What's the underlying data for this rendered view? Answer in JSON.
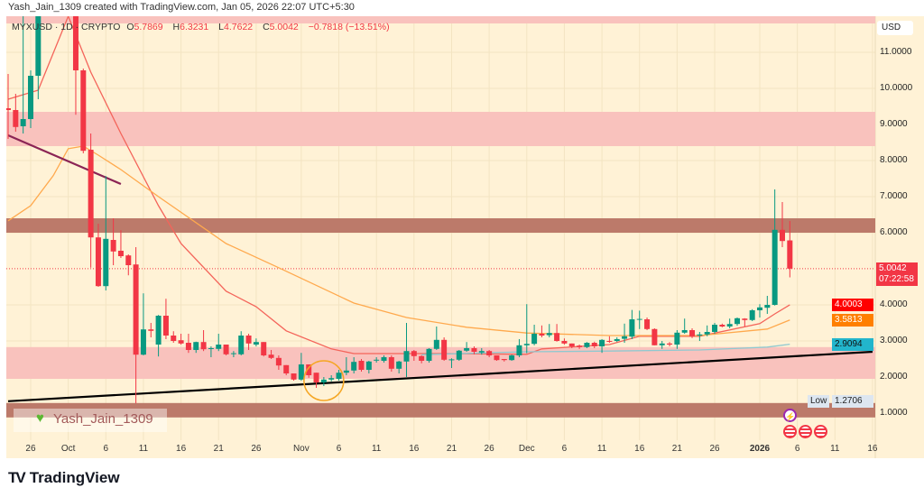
{
  "credit": "Yash_Jain_1309 created with TradingView.com, Jan 05, 2026 22:07 UTC+5:30",
  "legend": {
    "symbol": "MYXUSD · 1D · CRYPTO",
    "o_label": "O",
    "o": "5.7869",
    "h_label": "H",
    "h": "6.3231",
    "l_label": "L",
    "l": "4.7622",
    "c_label": "C",
    "c": "5.0042",
    "change": "−0.7818 (−13.51%)"
  },
  "currency": "USD",
  "watermark": "Yash_Jain_1309",
  "footer_brand": "TradingView",
  "footer_logo": "TV",
  "price_labels": {
    "last": {
      "value": "5.0042",
      "countdown": "07:22:58",
      "color": "#f23645"
    },
    "ma_red": {
      "value": "4.0003",
      "color": "#ff0000"
    },
    "ma_orange": {
      "value": "3.5813",
      "color": "#ff7f00"
    },
    "ma_teal": {
      "value": "2.9094",
      "color": "#22b5cc"
    },
    "low": {
      "tag": "Low",
      "value": "1.2706"
    }
  },
  "colors": {
    "up": "#089981",
    "down": "#f23645",
    "background": "#fff2d6"
  },
  "chart_data": {
    "type": "candlestick",
    "title": "MYXUSD · 1D · CRYPTO",
    "ylim": [
      0.75,
      12.0
    ],
    "xlim": [
      "2025-09-23",
      "2026-01-16"
    ],
    "grid": true,
    "y_ticks": [
      "11.0000",
      "10.0000",
      "9.0000",
      "8.0000",
      "7.0000",
      "6.0000",
      "4.0000",
      "3.0000",
      "2.0000",
      "1.0000"
    ],
    "x_ticks": [
      {
        "label": "26",
        "date": "2025-09-26"
      },
      {
        "label": "Oct",
        "date": "2025-10-01"
      },
      {
        "label": "6",
        "date": "2025-10-06"
      },
      {
        "label": "11",
        "date": "2025-10-11"
      },
      {
        "label": "16",
        "date": "2025-10-16"
      },
      {
        "label": "21",
        "date": "2025-10-21"
      },
      {
        "label": "26",
        "date": "2025-10-26"
      },
      {
        "label": "Nov",
        "date": "2025-11-01"
      },
      {
        "label": "6",
        "date": "2025-11-06"
      },
      {
        "label": "11",
        "date": "2025-11-11"
      },
      {
        "label": "16",
        "date": "2025-11-16"
      },
      {
        "label": "21",
        "date": "2025-11-21"
      },
      {
        "label": "26",
        "date": "2025-11-26"
      },
      {
        "label": "Dec",
        "date": "2025-12-01"
      },
      {
        "label": "6",
        "date": "2025-12-06"
      },
      {
        "label": "11",
        "date": "2025-12-11"
      },
      {
        "label": "16",
        "date": "2025-12-16"
      },
      {
        "label": "21",
        "date": "2025-12-21"
      },
      {
        "label": "26",
        "date": "2025-12-26"
      },
      {
        "label": "2026",
        "date": "2026-01-01",
        "bold": true
      },
      {
        "label": "6",
        "date": "2026-01-06"
      },
      {
        "label": "11",
        "date": "2026-01-11"
      },
      {
        "label": "16",
        "date": "2026-01-16"
      }
    ],
    "columns": [
      "date",
      "open",
      "high",
      "low",
      "close"
    ],
    "candles": [
      [
        "2025-09-23",
        9.45,
        10.4,
        8.6,
        9.4
      ],
      [
        "2025-09-24",
        9.4,
        9.85,
        8.8,
        8.93
      ],
      [
        "2025-09-25",
        8.95,
        12.0,
        8.75,
        9.15
      ],
      [
        "2025-09-26",
        9.15,
        10.5,
        8.9,
        10.35
      ],
      [
        "2025-09-27",
        10.35,
        12.5,
        9.7,
        12.2
      ],
      [
        "2025-10-02",
        12.2,
        12.5,
        9.27,
        10.5
      ],
      [
        "2025-10-03",
        10.5,
        10.55,
        8.2,
        8.27
      ],
      [
        "2025-10-04",
        8.3,
        8.75,
        5.03,
        5.87
      ],
      [
        "2025-10-05",
        5.87,
        6.25,
        4.5,
        4.52
      ],
      [
        "2025-10-06",
        4.52,
        7.57,
        4.4,
        5.83
      ],
      [
        "2025-10-07",
        5.8,
        6.4,
        5.1,
        5.48
      ],
      [
        "2025-10-08",
        5.5,
        6.07,
        5.3,
        5.35
      ],
      [
        "2025-10-09",
        5.37,
        5.4,
        4.82,
        5.1
      ],
      [
        "2025-10-10",
        5.12,
        5.6,
        1.2706,
        2.62
      ],
      [
        "2025-10-11",
        2.62,
        4.32,
        2.6,
        3.32
      ],
      [
        "2025-10-12",
        3.32,
        3.5,
        3.1,
        3.28
      ],
      [
        "2025-10-13",
        2.9,
        3.72,
        2.57,
        3.7
      ],
      [
        "2025-10-14",
        3.7,
        4.17,
        3.05,
        3.15
      ],
      [
        "2025-10-15",
        3.15,
        3.27,
        2.95,
        3.0
      ],
      [
        "2025-10-16",
        3.02,
        3.2,
        2.9,
        2.93
      ],
      [
        "2025-10-17",
        2.95,
        3.2,
        2.67,
        2.75
      ],
      [
        "2025-10-18",
        2.75,
        2.98,
        2.67,
        2.97
      ],
      [
        "2025-10-19",
        2.97,
        3.3,
        2.72,
        2.77
      ],
      [
        "2025-10-20",
        2.78,
        2.85,
        2.55,
        2.8
      ],
      [
        "2025-10-21",
        2.78,
        3.2,
        2.72,
        2.9
      ],
      [
        "2025-10-22",
        2.9,
        2.9,
        2.6,
        2.63
      ],
      [
        "2025-10-23",
        2.65,
        2.72,
        2.55,
        2.66
      ],
      [
        "2025-10-24",
        2.63,
        3.27,
        2.6,
        3.15
      ],
      [
        "2025-10-25",
        3.15,
        3.2,
        2.75,
        2.93
      ],
      [
        "2025-10-26",
        2.9,
        3.07,
        2.85,
        2.97
      ],
      [
        "2025-10-27",
        2.97,
        2.97,
        2.57,
        2.6
      ],
      [
        "2025-10-28",
        2.62,
        2.75,
        2.5,
        2.53
      ],
      [
        "2025-10-29",
        2.53,
        2.6,
        2.2,
        2.32
      ],
      [
        "2025-10-30",
        2.33,
        2.33,
        2.05,
        2.1
      ],
      [
        "2025-10-31",
        2.1,
        2.1,
        1.9,
        1.93
      ],
      [
        "2025-11-01",
        1.93,
        2.67,
        1.9,
        2.35
      ],
      [
        "2025-11-02",
        2.35,
        2.35,
        1.98,
        2.05
      ],
      [
        "2025-11-03",
        2.12,
        2.12,
        1.7,
        1.85
      ],
      [
        "2025-11-04",
        1.85,
        2.0,
        1.75,
        1.93
      ],
      [
        "2025-11-05",
        1.93,
        2.05,
        1.88,
        1.97
      ],
      [
        "2025-11-06",
        1.95,
        2.2,
        1.9,
        2.12
      ],
      [
        "2025-11-07",
        2.12,
        2.55,
        2.05,
        2.18
      ],
      [
        "2025-11-08",
        2.18,
        2.55,
        2.1,
        2.42
      ],
      [
        "2025-11-09",
        2.45,
        2.5,
        2.15,
        2.2
      ],
      [
        "2025-11-10",
        2.2,
        2.45,
        2.1,
        2.43
      ],
      [
        "2025-11-11",
        2.46,
        2.55,
        2.4,
        2.48
      ],
      [
        "2025-11-12",
        2.45,
        2.6,
        2.4,
        2.55
      ],
      [
        "2025-11-13",
        2.55,
        2.6,
        2.15,
        2.23
      ],
      [
        "2025-11-14",
        2.23,
        2.45,
        2.1,
        2.43
      ],
      [
        "2025-11-15",
        2.43,
        3.5,
        2.0,
        2.72
      ],
      [
        "2025-11-16",
        2.72,
        2.75,
        2.45,
        2.58
      ],
      [
        "2025-11-17",
        2.58,
        2.6,
        2.38,
        2.45
      ],
      [
        "2025-11-18",
        2.45,
        2.8,
        2.4,
        2.78
      ],
      [
        "2025-11-19",
        2.78,
        3.4,
        2.75,
        3.03
      ],
      [
        "2025-11-20",
        3.03,
        3.1,
        2.45,
        2.48
      ],
      [
        "2025-11-21",
        2.48,
        2.52,
        2.25,
        2.49
      ],
      [
        "2025-11-22",
        2.48,
        2.75,
        2.45,
        2.73
      ],
      [
        "2025-11-23",
        2.73,
        2.97,
        2.7,
        2.8
      ],
      [
        "2025-11-24",
        2.8,
        2.85,
        2.63,
        2.7
      ],
      [
        "2025-11-25",
        2.68,
        2.8,
        2.62,
        2.72
      ],
      [
        "2025-11-26",
        2.72,
        2.75,
        2.55,
        2.6
      ],
      [
        "2025-11-27",
        2.6,
        2.6,
        2.45,
        2.47
      ],
      [
        "2025-11-28",
        2.5,
        2.5,
        2.43,
        2.47
      ],
      [
        "2025-11-29",
        2.47,
        2.62,
        2.45,
        2.6
      ],
      [
        "2025-11-30",
        2.6,
        3.05,
        2.55,
        2.88
      ],
      [
        "2025-12-01",
        2.88,
        4.02,
        2.66,
        2.92
      ],
      [
        "2025-12-02",
        2.92,
        3.45,
        2.88,
        3.2
      ],
      [
        "2025-12-03",
        3.2,
        3.43,
        3.1,
        3.15
      ],
      [
        "2025-12-04",
        3.16,
        3.47,
        3.1,
        3.22
      ],
      [
        "2025-12-05",
        3.22,
        3.47,
        2.98,
        3.0
      ],
      [
        "2025-12-06",
        3.0,
        3.07,
        2.9,
        2.93
      ],
      [
        "2025-12-07",
        2.93,
        2.93,
        2.8,
        2.85
      ],
      [
        "2025-12-08",
        2.87,
        2.9,
        2.78,
        2.83
      ],
      [
        "2025-12-09",
        2.83,
        2.97,
        2.8,
        2.95
      ],
      [
        "2025-12-10",
        2.95,
        2.98,
        2.8,
        2.85
      ],
      [
        "2025-12-11",
        2.85,
        3.05,
        2.67,
        3.03
      ],
      [
        "2025-12-12",
        3.0,
        3.13,
        2.95,
        2.98
      ],
      [
        "2025-12-13",
        3.0,
        3.1,
        2.97,
        3.05
      ],
      [
        "2025-12-14",
        3.06,
        3.48,
        2.95,
        3.13
      ],
      [
        "2025-12-15",
        3.12,
        3.86,
        3.05,
        3.6
      ],
      [
        "2025-12-16",
        3.6,
        3.84,
        3.33,
        3.61
      ],
      [
        "2025-12-17",
        3.6,
        3.65,
        3.3,
        3.33
      ],
      [
        "2025-12-18",
        3.33,
        3.35,
        2.88,
        2.88
      ],
      [
        "2025-12-19",
        2.88,
        3.0,
        2.78,
        2.93
      ],
      [
        "2025-12-20",
        2.93,
        2.97,
        2.85,
        2.9
      ],
      [
        "2025-12-21",
        2.9,
        3.3,
        2.78,
        3.23
      ],
      [
        "2025-12-22",
        3.23,
        3.62,
        3.2,
        3.3
      ],
      [
        "2025-12-23",
        3.3,
        3.35,
        3.08,
        3.13
      ],
      [
        "2025-12-24",
        3.15,
        3.25,
        3.0,
        3.18
      ],
      [
        "2025-12-25",
        3.18,
        3.43,
        3.13,
        3.25
      ],
      [
        "2025-12-26",
        3.25,
        3.5,
        3.2,
        3.45
      ],
      [
        "2025-12-27",
        3.45,
        3.48,
        3.38,
        3.4
      ],
      [
        "2025-12-28",
        3.4,
        3.62,
        3.35,
        3.47
      ],
      [
        "2025-12-29",
        3.47,
        3.65,
        3.42,
        3.63
      ],
      [
        "2025-12-30",
        3.62,
        3.63,
        3.4,
        3.58
      ],
      [
        "2025-12-31",
        3.58,
        3.88,
        3.55,
        3.85
      ],
      [
        "2026-01-01",
        3.85,
        4.02,
        3.65,
        3.93
      ],
      [
        "2026-01-02",
        3.92,
        4.25,
        3.75,
        4.0
      ],
      [
        "2026-01-03",
        4.0,
        7.2,
        3.98,
        6.08
      ],
      [
        "2026-01-04",
        6.08,
        6.85,
        5.6,
        5.77
      ],
      [
        "2026-01-05",
        5.7869,
        6.3231,
        4.7622,
        5.0042
      ]
    ],
    "moving_averages": [
      {
        "color": "#f4645a",
        "points": [
          [
            "2025-09-23",
            9.7
          ],
          [
            "2025-09-27",
            9.95
          ],
          [
            "2025-10-01",
            12.0
          ],
          [
            "2025-10-04",
            10.45
          ],
          [
            "2025-10-08",
            8.75
          ],
          [
            "2025-10-13",
            6.75
          ],
          [
            "2025-10-16",
            5.7
          ],
          [
            "2025-10-22",
            4.38
          ],
          [
            "2025-10-26",
            3.95
          ],
          [
            "2025-10-30",
            3.28
          ],
          [
            "2025-11-05",
            2.78
          ],
          [
            "2025-11-08",
            2.65
          ],
          [
            "2025-11-20",
            2.65
          ],
          [
            "2025-12-01",
            2.63
          ],
          [
            "2025-12-03",
            2.78
          ],
          [
            "2025-12-12",
            2.9
          ],
          [
            "2025-12-16",
            3.13
          ],
          [
            "2025-12-24",
            3.13
          ],
          [
            "2026-01-01",
            3.48
          ],
          [
            "2026-01-03",
            3.75
          ],
          [
            "2026-01-05",
            4.0003
          ]
        ]
      },
      {
        "color": "#ffa94d",
        "points": [
          [
            "2025-09-23",
            6.33
          ],
          [
            "2025-09-26",
            6.75
          ],
          [
            "2025-09-29",
            7.58
          ],
          [
            "2025-10-01",
            8.33
          ],
          [
            "2025-10-03",
            8.4
          ],
          [
            "2025-10-05",
            8.15
          ],
          [
            "2025-10-08",
            7.75
          ],
          [
            "2025-10-13",
            7.0
          ],
          [
            "2025-10-22",
            5.7
          ],
          [
            "2025-10-29",
            5.03
          ],
          [
            "2025-11-08",
            4.05
          ],
          [
            "2025-11-15",
            3.65
          ],
          [
            "2025-11-23",
            3.38
          ],
          [
            "2025-12-01",
            3.22
          ],
          [
            "2025-12-12",
            3.15
          ],
          [
            "2025-12-24",
            3.15
          ],
          [
            "2026-01-02",
            3.33
          ],
          [
            "2026-01-05",
            3.5813
          ]
        ]
      },
      {
        "color": "#8fc9d0",
        "points": [
          [
            "2025-11-17",
            2.62
          ],
          [
            "2025-12-01",
            2.7
          ],
          [
            "2025-12-12",
            2.72
          ],
          [
            "2025-12-24",
            2.75
          ],
          [
            "2026-01-02",
            2.83
          ],
          [
            "2026-01-05",
            2.9094
          ]
        ]
      }
    ],
    "zones": [
      {
        "low": 11.8,
        "high": 12.05,
        "color": "#f9c2bd"
      },
      {
        "low": 8.4,
        "high": 9.35,
        "color": "#f9c2bd"
      },
      {
        "low": 6.0,
        "high": 6.4,
        "color": "#bc7a6a"
      },
      {
        "low": 1.95,
        "high": 2.83,
        "color": "#f9c2bd"
      },
      {
        "low": 0.88,
        "high": 1.28,
        "color": "#bc7a6a"
      }
    ],
    "trendlines": [
      {
        "color": "#8b2455",
        "from": [
          "2025-09-23",
          8.7
        ],
        "to": [
          "2025-10-08",
          7.35
        ]
      },
      {
        "color": "#000000",
        "from": [
          "2025-09-23",
          1.33
        ],
        "to": [
          "2026-01-16",
          2.7
        ]
      }
    ],
    "highlight_circle": {
      "date": "2025-11-04",
      "price": 1.9,
      "color": "#f5a623"
    },
    "last_price_line": 5.0042
  }
}
